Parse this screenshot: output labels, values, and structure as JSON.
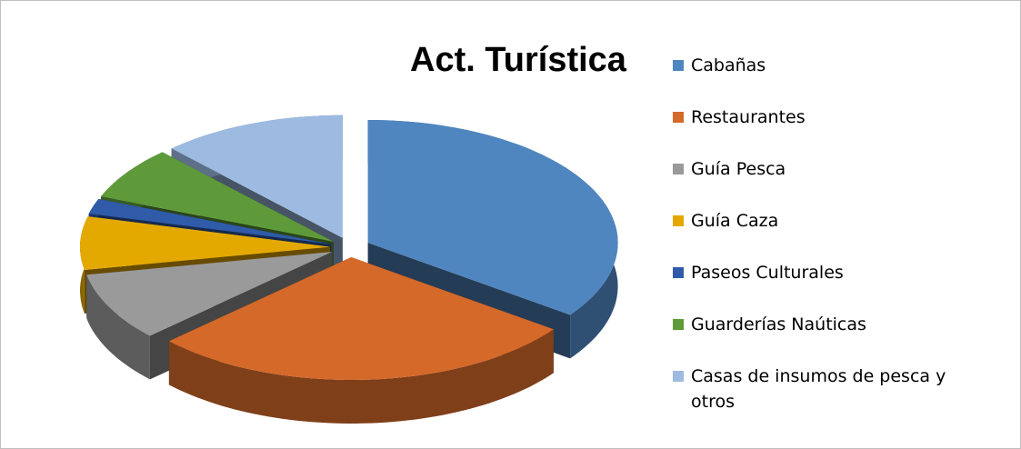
{
  "chart_data": {
    "type": "pie",
    "title": "Act. Turística",
    "categories": [
      "Cabañas",
      "Restaurantes",
      "Guía Pesca",
      "Guía Caza",
      "Paseos Culturales",
      "Guarderías Naúticas",
      "Casas de insumos de pesca y otros"
    ],
    "values": [
      35,
      28,
      9,
      7,
      2,
      7,
      12
    ],
    "colors": [
      "#4f86c0",
      "#d4692a",
      "#9a9a9a",
      "#e4a900",
      "#2f5ba8",
      "#5e9a3a",
      "#9dbbe1"
    ],
    "legend": "right"
  }
}
